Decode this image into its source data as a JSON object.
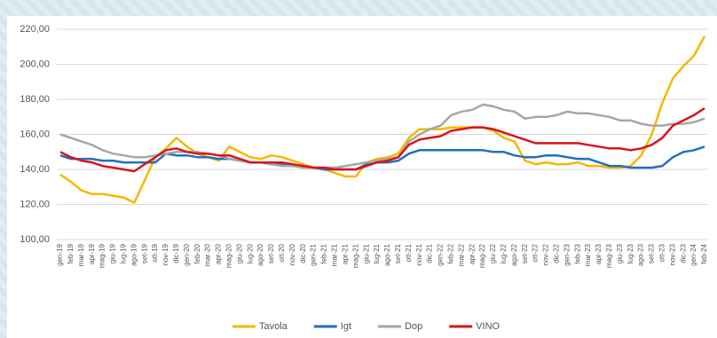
{
  "chart_data": {
    "type": "line",
    "categories": [
      "gen-19",
      "feb-19",
      "mar-19",
      "apr-19",
      "mag-19",
      "giu-19",
      "lug-19",
      "ago-19",
      "set-19",
      "ott-19",
      "nov-19",
      "dic-19",
      "gen-20",
      "feb-20",
      "mar-20",
      "apr-20",
      "mag-20",
      "giu-20",
      "lug-20",
      "ago-20",
      "set-20",
      "ott-20",
      "nov-20",
      "dic-20",
      "gen-21",
      "feb-21",
      "mar-21",
      "apr-21",
      "mag-21",
      "giu-21",
      "lug-21",
      "ago-21",
      "set-21",
      "ott-21",
      "nov-21",
      "dic-21",
      "gen-22",
      "feb-22",
      "mar-22",
      "apr-22",
      "mag-22",
      "giu-22",
      "lug-22",
      "ago-22",
      "set-22",
      "ott-22",
      "nov-22",
      "dic-22",
      "gen-23",
      "feb-23",
      "mar-23",
      "apr-23",
      "mag-23",
      "giu-23",
      "lug-23",
      "ago-23",
      "set-23",
      "ott-23",
      "nov-23",
      "dic-23",
      "gen-24",
      "feb-24"
    ],
    "series": [
      {
        "name": "Tavola",
        "color": "#f5b800",
        "values": [
          137,
          133,
          128,
          126,
          126,
          125,
          124,
          121,
          134,
          147,
          152,
          158,
          153,
          149,
          147,
          145,
          153,
          150,
          147,
          146,
          148,
          147,
          145,
          143,
          141,
          140,
          138,
          136,
          136,
          144,
          146,
          147,
          149,
          158,
          163,
          163,
          163,
          164,
          164,
          164,
          164,
          162,
          158,
          156,
          145,
          143,
          144,
          143,
          143,
          144,
          142,
          142,
          141,
          141,
          142,
          148,
          160,
          178,
          192,
          199,
          205,
          216
        ]
      },
      {
        "name": "Igt",
        "color": "#1f6fc4",
        "values": [
          148,
          146,
          146,
          146,
          145,
          145,
          144,
          144,
          144,
          144,
          149,
          148,
          148,
          147,
          147,
          146,
          146,
          145,
          144,
          144,
          143,
          143,
          142,
          142,
          141,
          140,
          140,
          140,
          140,
          143,
          144,
          144,
          145,
          149,
          151,
          151,
          151,
          151,
          151,
          151,
          151,
          150,
          150,
          148,
          147,
          147,
          148,
          148,
          147,
          146,
          146,
          144,
          142,
          142,
          141,
          141,
          141,
          142,
          147,
          150,
          151,
          153
        ]
      },
      {
        "name": "Dop",
        "color": "#a6a6a6",
        "values": [
          160,
          158,
          156,
          154,
          151,
          149,
          148,
          147,
          147,
          148,
          149,
          150,
          150,
          150,
          149,
          148,
          146,
          145,
          144,
          144,
          143,
          142,
          142,
          141,
          141,
          141,
          141,
          142,
          143,
          144,
          145,
          146,
          147,
          156,
          160,
          163,
          165,
          171,
          173,
          174,
          177,
          176,
          174,
          173,
          169,
          170,
          170,
          171,
          173,
          172,
          172,
          171,
          170,
          168,
          168,
          166,
          165,
          165,
          166,
          166,
          167,
          169
        ]
      },
      {
        "name": "VINO",
        "color": "#d9141e",
        "values": [
          150,
          147,
          145,
          144,
          142,
          141,
          140,
          139,
          143,
          147,
          151,
          152,
          150,
          149,
          149,
          148,
          148,
          146,
          144,
          144,
          144,
          144,
          143,
          142,
          141,
          141,
          140,
          140,
          140,
          142,
          144,
          145,
          147,
          154,
          157,
          158,
          159,
          162,
          163,
          164,
          164,
          163,
          161,
          159,
          157,
          155,
          155,
          155,
          155,
          155,
          154,
          153,
          152,
          152,
          151,
          152,
          154,
          158,
          165,
          168,
          171,
          175
        ]
      }
    ],
    "ylim": [
      100,
      220
    ],
    "yticks": [
      {
        "value": 100,
        "label": "100,00"
      },
      {
        "value": 120,
        "label": "120,00"
      },
      {
        "value": 140,
        "label": "140,00"
      },
      {
        "value": 160,
        "label": "160,00"
      },
      {
        "value": 180,
        "label": "180,00"
      },
      {
        "value": 200,
        "label": "200,00"
      },
      {
        "value": 220,
        "label": "220,00"
      }
    ],
    "grid": true,
    "legend": "bottom"
  }
}
